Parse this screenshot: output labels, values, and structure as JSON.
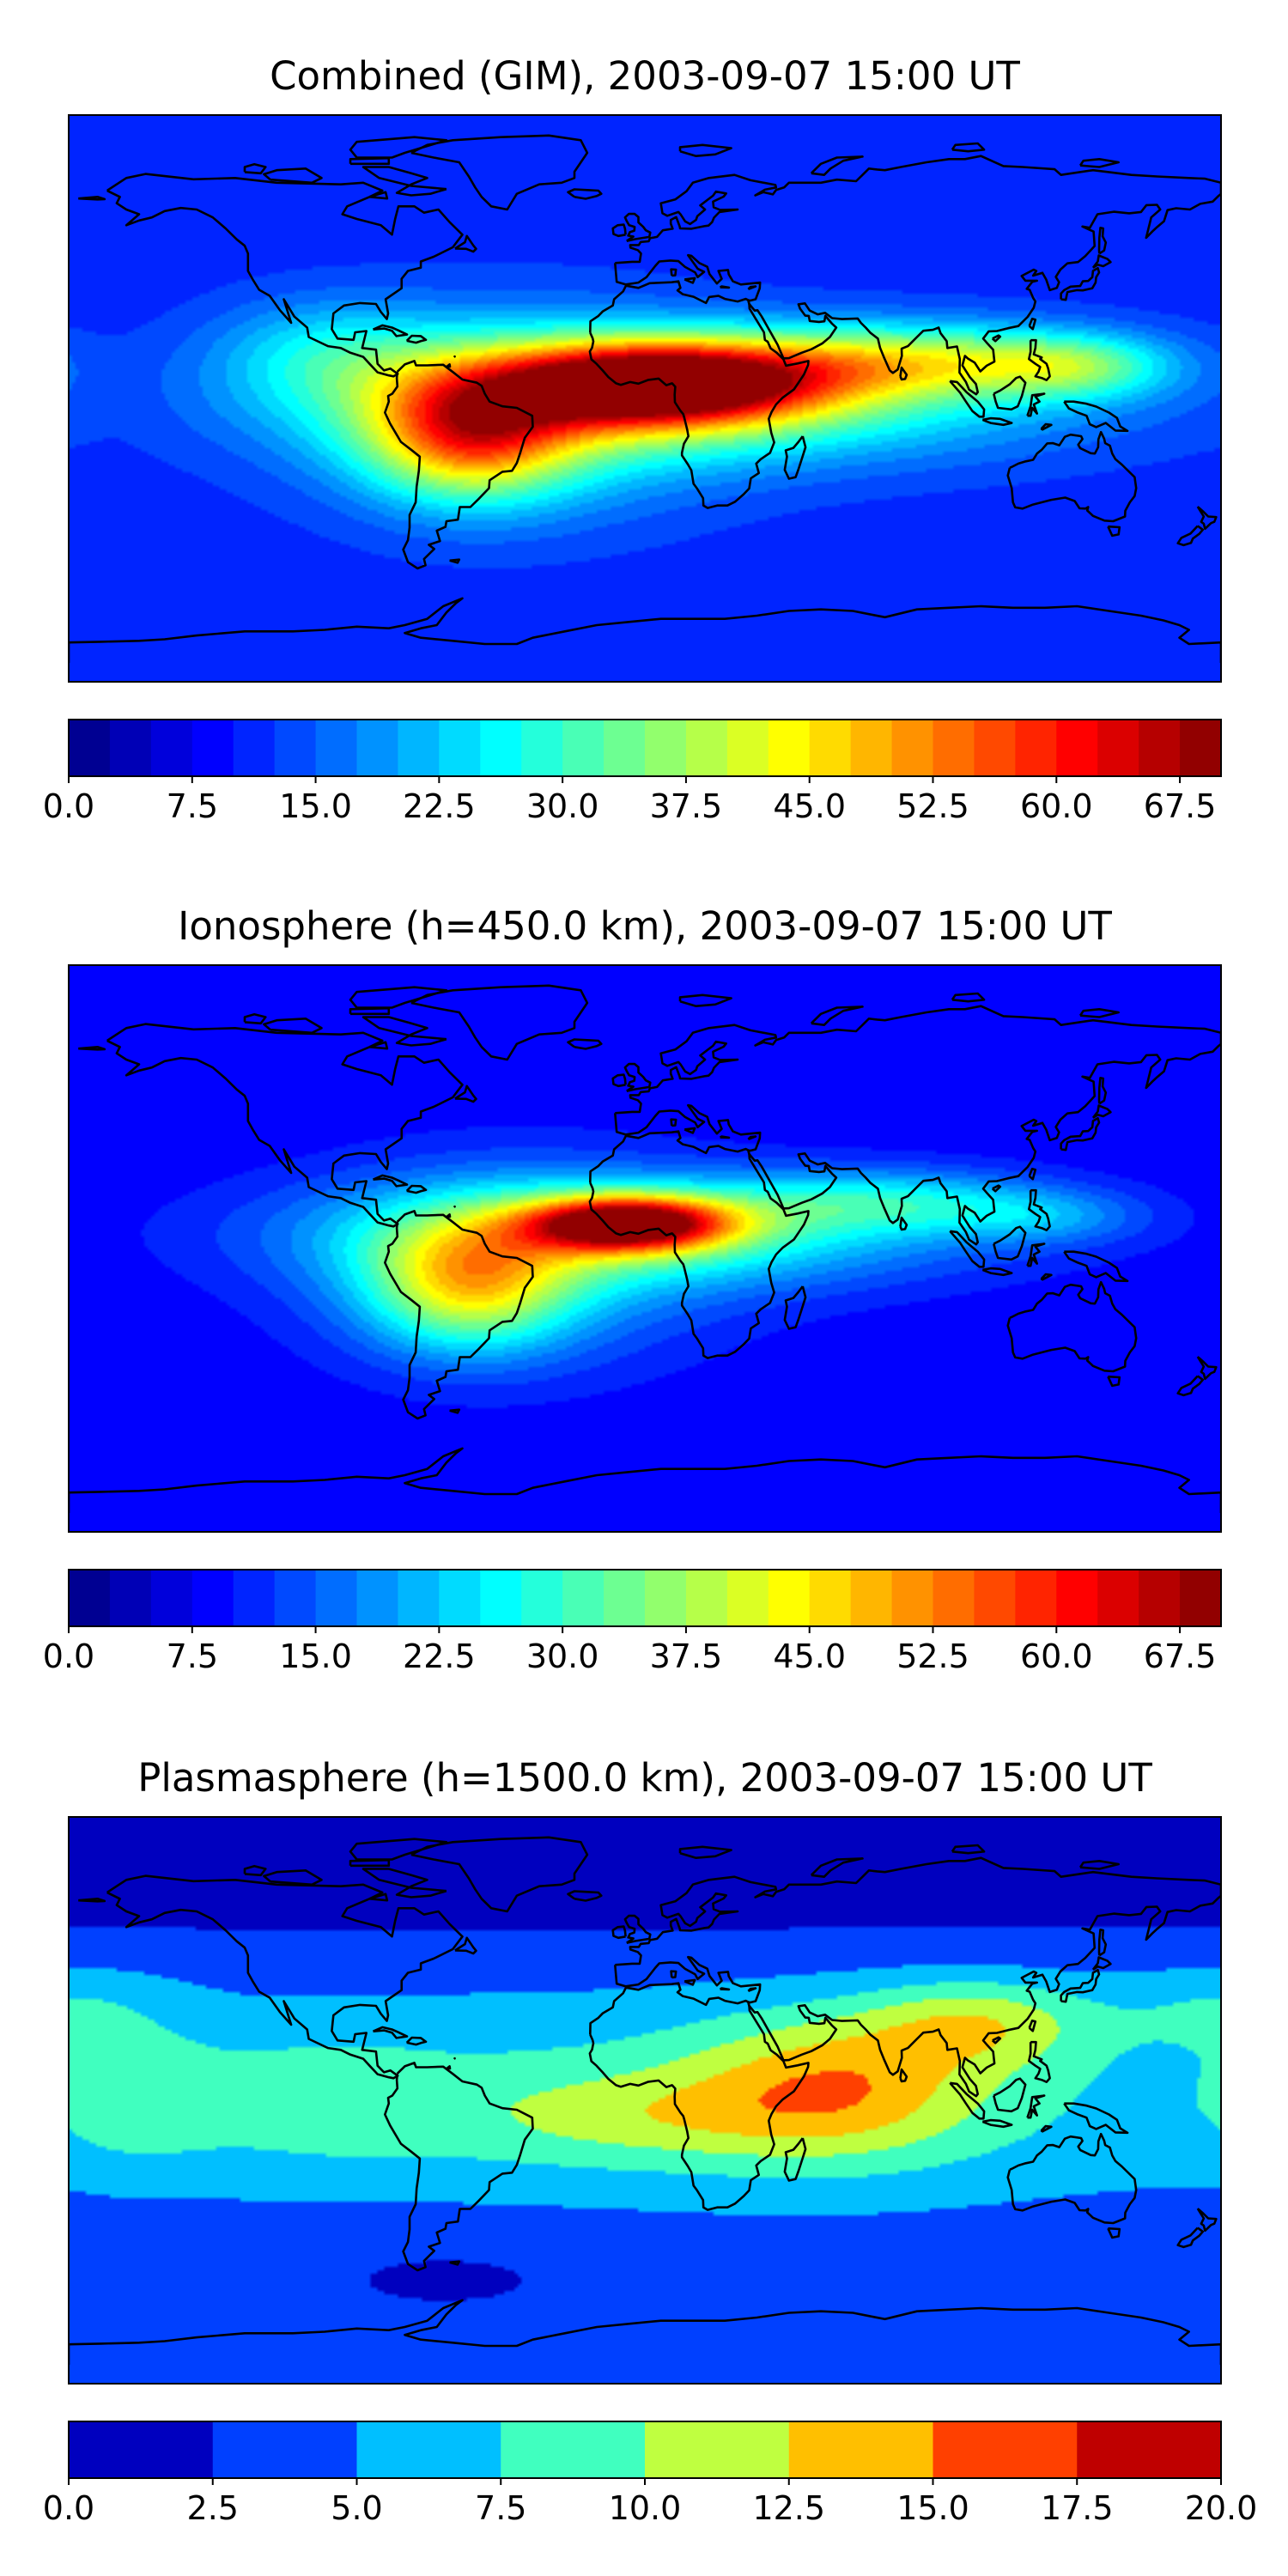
{
  "panels": [
    {
      "id": "combined",
      "title": "Combined (GIM), 2003-09-07 15:00 UT",
      "colorbar": {
        "vmin": 0.0,
        "vmax": 70.0,
        "levels": 28,
        "tick_values": [
          0.0,
          7.5,
          15.0,
          22.5,
          30.0,
          37.5,
          45.0,
          52.5,
          60.0,
          67.5
        ],
        "tick_labels": [
          "0.0",
          "7.5",
          "15.0",
          "22.5",
          "30.0",
          "37.5",
          "45.0",
          "52.5",
          "60.0",
          "67.5"
        ]
      },
      "field": {
        "background": 11,
        "blobs": [
          {
            "lon": 5,
            "lat": 5,
            "sx": 35,
            "sy": 9,
            "amp": 52
          },
          {
            "lon": 15,
            "lat": 0,
            "sx": 80,
            "sy": 14,
            "amp": 22
          },
          {
            "lon": -55,
            "lat": -12,
            "sx": 22,
            "sy": 14,
            "amp": 30
          },
          {
            "lon": -40,
            "lat": -5,
            "sx": 45,
            "sy": 22,
            "amp": 14
          },
          {
            "lon": 85,
            "lat": 12,
            "sx": 40,
            "sy": 8,
            "amp": 22
          },
          {
            "lon": 135,
            "lat": 10,
            "sx": 20,
            "sy": 7,
            "amp": 14
          },
          {
            "lon": -100,
            "lat": 15,
            "sx": 25,
            "sy": 12,
            "amp": 10
          }
        ]
      }
    },
    {
      "id": "ionosphere",
      "title": "Ionosphere  (h=450.0 km), 2003-09-07 15:00 UT",
      "colorbar": {
        "vmin": 0.0,
        "vmax": 70.0,
        "levels": 28,
        "tick_values": [
          0.0,
          7.5,
          15.0,
          22.5,
          30.0,
          37.5,
          45.0,
          52.5,
          60.0,
          67.5
        ],
        "tick_labels": [
          "0.0",
          "7.5",
          "15.0",
          "22.5",
          "30.0",
          "37.5",
          "45.0",
          "52.5",
          "60.0",
          "67.5"
        ]
      },
      "field": {
        "background": 8,
        "blobs": [
          {
            "lon": -5,
            "lat": 8,
            "sx": 22,
            "sy": 6,
            "amp": 50
          },
          {
            "lon": 0,
            "lat": 5,
            "sx": 70,
            "sy": 12,
            "amp": 20
          },
          {
            "lon": -55,
            "lat": -12,
            "sx": 22,
            "sy": 14,
            "amp": 26
          },
          {
            "lon": -40,
            "lat": -5,
            "sx": 45,
            "sy": 22,
            "amp": 12
          },
          {
            "lon": 75,
            "lat": 15,
            "sx": 35,
            "sy": 7,
            "amp": 14
          },
          {
            "lon": 125,
            "lat": 10,
            "sx": 22,
            "sy": 6,
            "amp": 8
          }
        ]
      }
    },
    {
      "id": "plasmasphere",
      "title": "Plasmasphere (h=1500.0 km), 2003-09-07 15:00 UT",
      "colorbar": {
        "vmin": 0.0,
        "vmax": 20.0,
        "levels": 8,
        "tick_values": [
          0.0,
          2.5,
          5.0,
          7.5,
          10.0,
          12.5,
          15.0,
          17.5,
          20.0
        ],
        "tick_labels": [
          "0.0",
          "2.5",
          "5.0",
          "7.5",
          "10.0",
          "12.5",
          "15.0",
          "17.5",
          "20.0"
        ]
      },
      "field": {
        "background": 2.5,
        "blobs": [
          {
            "lon": 0,
            "lat": 0,
            "sx": 200,
            "sy": 28,
            "amp": 5.5
          },
          {
            "lon": -160,
            "lat": 0,
            "sx": 20,
            "sy": 15,
            "amp": 3.0
          },
          {
            "lon": -100,
            "lat": 0,
            "sx": 25,
            "sy": 14,
            "amp": 2.0
          },
          {
            "lon": 0,
            "lat": -5,
            "sx": 40,
            "sy": 10,
            "amp": 3.5
          },
          {
            "lon": 60,
            "lat": 5,
            "sx": 32,
            "sy": 16,
            "amp": 7.0
          },
          {
            "lon": 105,
            "lat": 25,
            "sx": 25,
            "sy": 10,
            "amp": 6.0
          },
          {
            "lon": 180,
            "lat": 30,
            "sx": 25,
            "sy": 10,
            "amp": 3.0
          },
          {
            "lon": 0,
            "lat": 70,
            "sx": 200,
            "sy": 15,
            "amp": -1.5
          },
          {
            "lon": -60,
            "lat": -50,
            "sx": 40,
            "sy": 10,
            "amp": -1.0
          }
        ]
      }
    }
  ],
  "colormap": "jet",
  "coastline_color": "#000000",
  "projection": "plate-carree",
  "extent": {
    "lon": [
      -180,
      180
    ],
    "lat": [
      -90,
      90
    ]
  }
}
